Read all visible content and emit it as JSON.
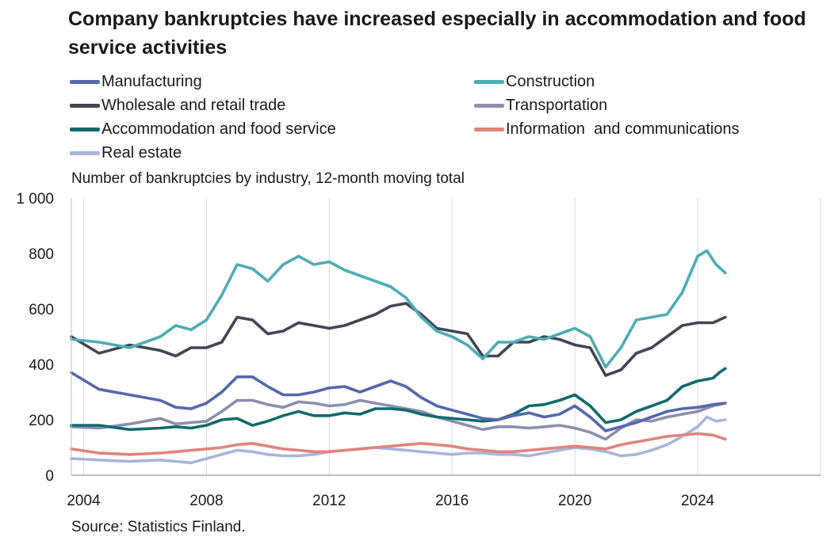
{
  "title": "Company bankruptcies have increased especially in accommodation and food service activities",
  "subtitle": "Number of bankruptcies by industry, 12-month moving total",
  "source": "Source: Statistics Finland.",
  "chart_data": {
    "type": "line",
    "ylabel": "Number of bankruptcies by industry, 12-month moving total",
    "xlim": [
      2003.6,
      2028.0
    ],
    "ylim": [
      0,
      1000
    ],
    "y_ticks": [
      0,
      200,
      400,
      600,
      800,
      1000
    ],
    "y_tick_labels": [
      "0",
      "200",
      "400",
      "600",
      "800",
      "1 000"
    ],
    "x_ticks": [
      2004,
      2008,
      2012,
      2016,
      2020,
      2024
    ],
    "x_tick_labels": [
      "2004",
      "2008",
      "2012",
      "2016",
      "2020",
      "2024"
    ],
    "grid": "vertical",
    "legend_position": "top",
    "series": [
      {
        "name": "Manufacturing",
        "color": "#5568ac",
        "x": [
          2003.6,
          2004.5,
          2005.5,
          2006.5,
          2007.0,
          2007.5,
          2008.0,
          2008.5,
          2009.0,
          2009.5,
          2010.0,
          2010.5,
          2011.0,
          2011.5,
          2012.0,
          2012.5,
          2013.0,
          2013.5,
          2014.0,
          2014.5,
          2015.0,
          2015.5,
          2016.0,
          2016.5,
          2017.0,
          2017.5,
          2018.0,
          2018.5,
          2019.0,
          2019.5,
          2020.0,
          2020.5,
          2021.0,
          2021.5,
          2022.0,
          2022.5,
          2023.0,
          2023.5,
          2024.0,
          2024.5,
          2024.9
        ],
        "y": [
          370,
          310,
          290,
          270,
          245,
          240,
          260,
          300,
          355,
          355,
          320,
          290,
          290,
          300,
          315,
          320,
          300,
          320,
          340,
          320,
          280,
          250,
          235,
          220,
          205,
          200,
          215,
          225,
          210,
          220,
          250,
          210,
          160,
          175,
          190,
          210,
          230,
          240,
          245,
          255,
          260
        ]
      },
      {
        "name": "Construction",
        "color": "#4eacb5",
        "x": [
          2003.6,
          2004.5,
          2005.5,
          2006.5,
          2007.0,
          2007.5,
          2008.0,
          2008.5,
          2009.0,
          2009.5,
          2010.0,
          2010.5,
          2011.0,
          2011.5,
          2012.0,
          2012.5,
          2013.0,
          2013.5,
          2014.0,
          2014.5,
          2015.0,
          2015.5,
          2016.0,
          2016.5,
          2017.0,
          2017.5,
          2018.0,
          2018.5,
          2019.0,
          2019.5,
          2020.0,
          2020.5,
          2021.0,
          2021.5,
          2022.0,
          2022.5,
          2023.0,
          2023.5,
          2024.0,
          2024.3,
          2024.6,
          2024.9
        ],
        "y": [
          490,
          480,
          460,
          500,
          540,
          525,
          560,
          650,
          760,
          745,
          700,
          760,
          790,
          760,
          770,
          740,
          720,
          700,
          680,
          640,
          570,
          520,
          500,
          470,
          420,
          480,
          480,
          500,
          490,
          510,
          530,
          500,
          390,
          460,
          560,
          570,
          580,
          660,
          790,
          810,
          760,
          730
        ]
      },
      {
        "name": "Wholesale and retail trade",
        "color": "#414656",
        "x": [
          2003.6,
          2004.5,
          2005.5,
          2006.5,
          2007.0,
          2007.5,
          2008.0,
          2008.5,
          2009.0,
          2009.5,
          2010.0,
          2010.5,
          2011.0,
          2011.5,
          2012.0,
          2012.5,
          2013.0,
          2013.5,
          2014.0,
          2014.5,
          2015.0,
          2015.5,
          2016.0,
          2016.5,
          2017.0,
          2017.5,
          2018.0,
          2018.5,
          2019.0,
          2019.5,
          2020.0,
          2020.5,
          2021.0,
          2021.5,
          2022.0,
          2022.5,
          2023.0,
          2023.5,
          2024.0,
          2024.5,
          2024.9
        ],
        "y": [
          500,
          440,
          470,
          450,
          430,
          460,
          460,
          480,
          570,
          560,
          510,
          520,
          550,
          540,
          530,
          540,
          560,
          580,
          610,
          620,
          580,
          530,
          520,
          510,
          430,
          430,
          480,
          480,
          500,
          490,
          470,
          460,
          360,
          380,
          440,
          460,
          500,
          540,
          550,
          550,
          570
        ]
      },
      {
        "name": "Transportation",
        "color": "#8c8fad",
        "x": [
          2003.6,
          2004.5,
          2005.5,
          2006.5,
          2007.0,
          2007.5,
          2008.0,
          2008.5,
          2009.0,
          2009.5,
          2010.0,
          2010.5,
          2011.0,
          2011.5,
          2012.0,
          2012.5,
          2013.0,
          2013.5,
          2014.0,
          2014.5,
          2015.0,
          2015.5,
          2016.0,
          2016.5,
          2017.0,
          2017.5,
          2018.0,
          2018.5,
          2019.0,
          2019.5,
          2020.0,
          2020.5,
          2021.0,
          2021.5,
          2022.0,
          2022.5,
          2023.0,
          2023.5,
          2024.0,
          2024.5,
          2024.9
        ],
        "y": [
          175,
          170,
          185,
          205,
          185,
          190,
          195,
          230,
          270,
          270,
          255,
          245,
          265,
          260,
          250,
          255,
          270,
          260,
          250,
          240,
          230,
          210,
          195,
          180,
          165,
          175,
          175,
          170,
          175,
          180,
          170,
          155,
          130,
          170,
          200,
          195,
          210,
          220,
          230,
          250,
          260
        ]
      },
      {
        "name": "Accommodation and food service",
        "color": "#116a6e",
        "x": [
          2003.6,
          2004.5,
          2005.5,
          2006.5,
          2007.0,
          2007.5,
          2008.0,
          2008.5,
          2009.0,
          2009.5,
          2010.0,
          2010.5,
          2011.0,
          2011.5,
          2012.0,
          2012.5,
          2013.0,
          2013.5,
          2014.0,
          2014.5,
          2015.0,
          2015.5,
          2016.0,
          2016.5,
          2017.0,
          2017.5,
          2018.0,
          2018.5,
          2019.0,
          2019.5,
          2020.0,
          2020.5,
          2021.0,
          2021.5,
          2022.0,
          2022.5,
          2023.0,
          2023.5,
          2024.0,
          2024.5,
          2024.7,
          2024.9
        ],
        "y": [
          180,
          180,
          165,
          170,
          175,
          170,
          180,
          200,
          205,
          180,
          195,
          215,
          230,
          215,
          215,
          225,
          220,
          240,
          240,
          235,
          220,
          210,
          205,
          200,
          195,
          200,
          220,
          250,
          255,
          270,
          290,
          250,
          190,
          200,
          230,
          250,
          270,
          320,
          340,
          350,
          370,
          385
        ]
      },
      {
        "name": "Information  and communications",
        "color": "#e0847c",
        "x": [
          2003.6,
          2004.5,
          2005.5,
          2006.5,
          2007.0,
          2007.5,
          2008.0,
          2008.5,
          2009.0,
          2009.5,
          2010.0,
          2010.5,
          2011.0,
          2011.5,
          2012.0,
          2012.5,
          2013.0,
          2013.5,
          2014.0,
          2014.5,
          2015.0,
          2015.5,
          2016.0,
          2016.5,
          2017.0,
          2017.5,
          2018.0,
          2018.5,
          2019.0,
          2019.5,
          2020.0,
          2020.5,
          2021.0,
          2021.5,
          2022.0,
          2022.5,
          2023.0,
          2023.5,
          2024.0,
          2024.5,
          2024.9
        ],
        "y": [
          95,
          80,
          75,
          80,
          85,
          90,
          95,
          100,
          110,
          115,
          105,
          95,
          90,
          85,
          85,
          90,
          95,
          100,
          105,
          110,
          115,
          110,
          105,
          95,
          90,
          85,
          85,
          90,
          95,
          100,
          105,
          100,
          95,
          110,
          120,
          130,
          140,
          145,
          150,
          145,
          130
        ]
      },
      {
        "name": "Real estate",
        "color": "#a7b6dd",
        "x": [
          2003.6,
          2004.5,
          2005.5,
          2006.5,
          2007.0,
          2007.5,
          2008.0,
          2008.5,
          2009.0,
          2009.5,
          2010.0,
          2010.5,
          2011.0,
          2011.5,
          2012.0,
          2012.5,
          2013.0,
          2013.5,
          2014.0,
          2014.5,
          2015.0,
          2015.5,
          2016.0,
          2016.5,
          2017.0,
          2017.5,
          2018.0,
          2018.5,
          2019.0,
          2019.5,
          2020.0,
          2020.5,
          2021.0,
          2021.5,
          2022.0,
          2022.5,
          2023.0,
          2023.5,
          2024.0,
          2024.3,
          2024.6,
          2024.9
        ],
        "y": [
          60,
          55,
          50,
          55,
          50,
          45,
          60,
          75,
          90,
          85,
          75,
          70,
          70,
          75,
          85,
          90,
          95,
          100,
          95,
          90,
          85,
          80,
          75,
          80,
          80,
          75,
          75,
          70,
          80,
          90,
          100,
          95,
          85,
          70,
          75,
          90,
          110,
          140,
          175,
          210,
          195,
          200
        ]
      }
    ]
  }
}
